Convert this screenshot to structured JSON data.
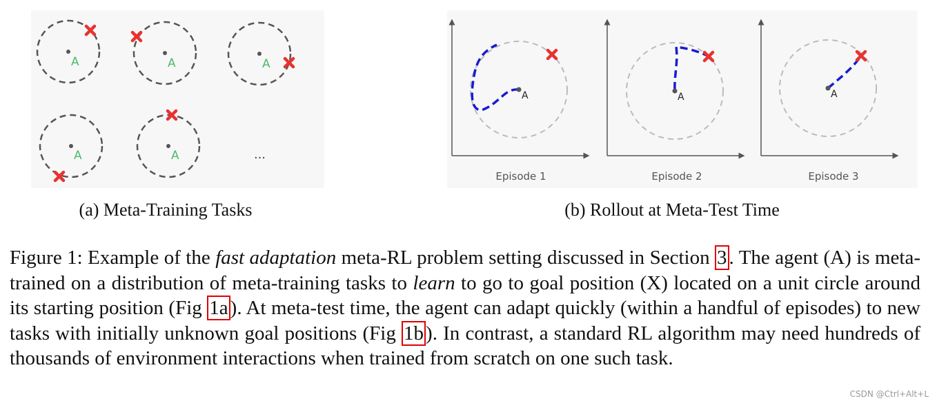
{
  "panel_a": {
    "agents": [
      "A",
      "A",
      "A",
      "A",
      "A"
    ],
    "more": "…",
    "caption": "(a) Meta-Training Tasks"
  },
  "panel_b": {
    "episodes": [
      {
        "agent": "A",
        "label": "Episode 1"
      },
      {
        "agent": "A",
        "label": "Episode 2"
      },
      {
        "agent": "A",
        "label": "Episode 3"
      }
    ],
    "caption": "(b) Rollout at Meta-Test Time"
  },
  "caption": {
    "parts": [
      "Figure 1: Example of the ",
      "fast adaptation",
      " meta-RL problem setting discussed in Section ",
      "3",
      ". The agent (A) is meta-trained on a distribution of meta-training tasks to ",
      "learn",
      " to go to goal position (X) located on a unit circle around its starting position (Fig ",
      "1a",
      "). At meta-test time, the agent can adapt quickly (within a handful of episodes) to new tasks with initially unknown goal positions (Fig ",
      "1b",
      "). In contrast, a standard RL algorithm may need hundreds of thousands of environment interactions when trained from scratch on one such task."
    ]
  },
  "watermark": "CSDN @Ctrl+Alt+L"
}
